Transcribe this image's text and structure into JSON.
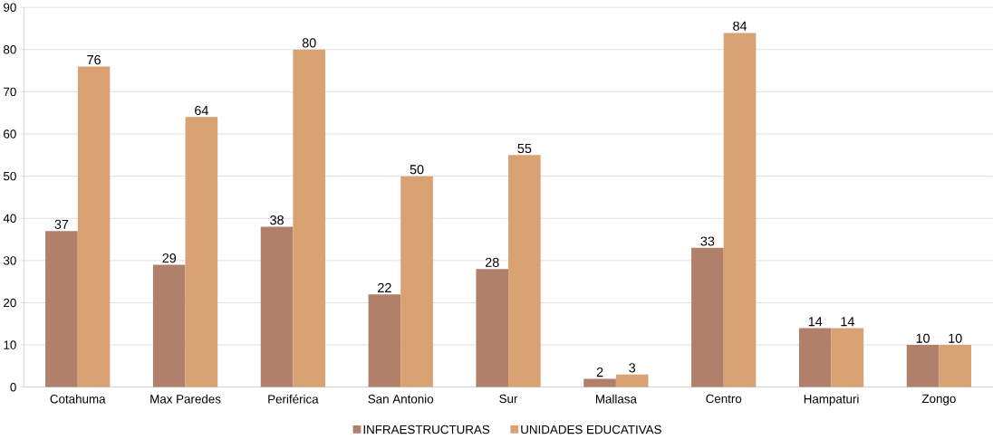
{
  "chart_data": {
    "type": "bar",
    "categories": [
      "Cotahuma",
      "Max Paredes",
      "Periférica",
      "San Antonio",
      "Sur",
      "Mallasa",
      "Centro",
      "Hampaturi",
      "Zongo"
    ],
    "series": [
      {
        "name": "INFRAESTRUCTURAS",
        "color": "#b0806a",
        "values": [
          37,
          29,
          38,
          22,
          28,
          2,
          33,
          14,
          10
        ]
      },
      {
        "name": "UNIDADES EDUCATIVAS",
        "color": "#d9a273",
        "values": [
          76,
          64,
          80,
          50,
          55,
          3,
          84,
          14,
          10
        ]
      }
    ],
    "ylim": [
      0,
      90
    ],
    "yticks": [
      0,
      10,
      20,
      30,
      40,
      50,
      60,
      70,
      80,
      90
    ],
    "grid": "y",
    "legend": "bottom",
    "data_labels": true
  }
}
